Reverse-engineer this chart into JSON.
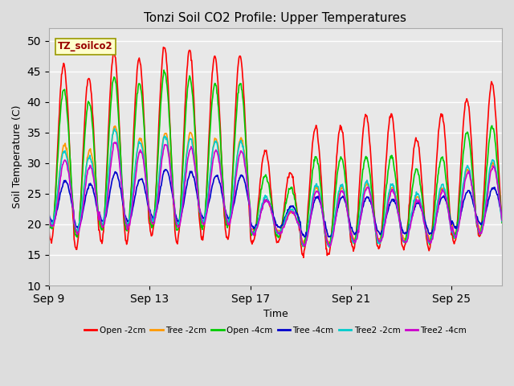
{
  "title": "Tonzi Soil CO2 Profile: Upper Temperatures",
  "xlabel": "Time",
  "ylabel": "Soil Temperature (C)",
  "ylim": [
    10,
    52
  ],
  "yticks": [
    10,
    15,
    20,
    25,
    30,
    35,
    40,
    45,
    50
  ],
  "background_color": "#dddddd",
  "plot_bg_color": "#e8e8e8",
  "label_box_text": "TZ_soilco2",
  "label_box_color": "#ffffcc",
  "label_box_edge": "#999900",
  "series": [
    {
      "label": "Open -2cm",
      "color": "#ff0000",
      "lw": 1.2
    },
    {
      "label": "Tree -2cm",
      "color": "#ff9900",
      "lw": 1.2
    },
    {
      "label": "Open -4cm",
      "color": "#00cc00",
      "lw": 1.2
    },
    {
      "label": "Tree -4cm",
      "color": "#0000cc",
      "lw": 1.2
    },
    {
      "label": "Tree2 -2cm",
      "color": "#00cccc",
      "lw": 1.2
    },
    {
      "label": "Tree2 -4cm",
      "color": "#cc00cc",
      "lw": 1.2
    }
  ],
  "x_tick_labels": [
    "Sep 9",
    "Sep 13",
    "Sep 17",
    "Sep 21",
    "Sep 25"
  ],
  "x_tick_positions": [
    0,
    4,
    8,
    12,
    16
  ],
  "total_days": 18,
  "points_per_day": 48
}
